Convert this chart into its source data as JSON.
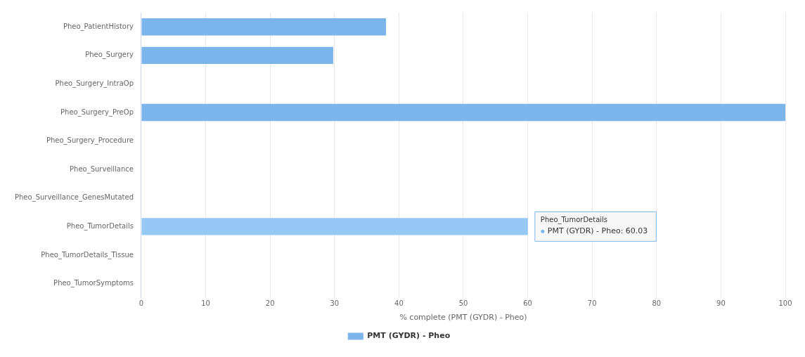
{
  "chart_data": {
    "type": "bar",
    "orientation": "horizontal",
    "xlabel": "% complete (PMT (GYDR) - Pheo)",
    "categories": [
      "Pheo_PatientHistory",
      "Pheo_Surgery",
      "Pheo_Surgery_IntraOp",
      "Pheo_Surgery_PreOp",
      "Pheo_Surgery_Procedure",
      "Pheo_Surveillance",
      "Pheo_Surveillance_GenesMutated",
      "Pheo_TumorDetails",
      "Pheo_TumorDetails_Tissue",
      "Pheo_TumorSymptoms"
    ],
    "series": [
      {
        "name": "PMT (GYDR) - Pheo",
        "color": "#7cb5ec",
        "colors": [
          "#7cb5ec",
          "#7cb5ec",
          "#7cb5ec",
          "#7cb5ec",
          "#7cb5ec",
          "#7cb5ec",
          "#7cb5ec",
          "#95c8f5",
          "#7cb5ec",
          "#7cb5ec"
        ],
        "values": [
          38,
          29.8,
          0,
          100,
          0,
          0,
          0,
          60.03,
          0,
          0
        ]
      }
    ],
    "xlim": [
      0,
      100
    ],
    "xticks": [
      0,
      10,
      20,
      30,
      40,
      50,
      60,
      70,
      80,
      90,
      100
    ],
    "annotations": [
      {
        "text": "Pheo_TumorDetails",
        "x": 60.03,
        "y": "Pheo_TumorDetails"
      },
      {
        "text": "PMT (GYDR) - Pheo: 60.03",
        "x": 60.03,
        "y": "Pheo_TumorDetails"
      }
    ],
    "grid": "x",
    "legend": "bottom"
  }
}
